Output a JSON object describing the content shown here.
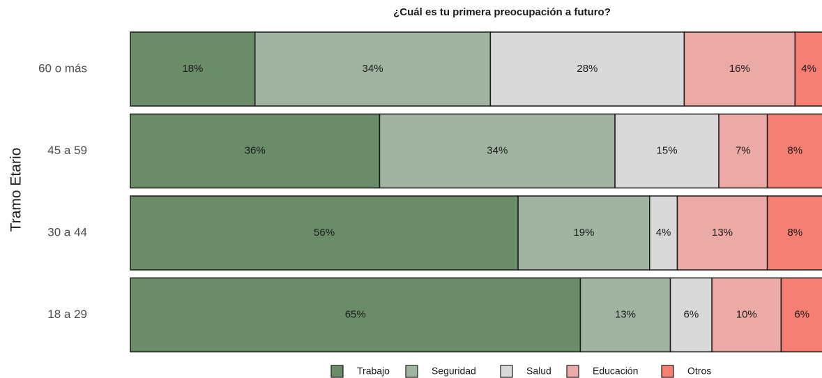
{
  "chart_data": {
    "type": "stacked_bar_horizontal",
    "title": "¿Cuál es tu primera preocupación a futuro?",
    "y_label": "Tramo Etario",
    "categories": [
      "60 o más",
      "45 a 59",
      "30 a 44",
      "18 a 29"
    ],
    "series": [
      {
        "name": "Trabajo",
        "color": "#6b8c69",
        "values": [
          18,
          36,
          56,
          65
        ],
        "value_labels": [
          "18%",
          "36%",
          "56%",
          "65%"
        ]
      },
      {
        "name": "Seguridad",
        "color": "#a1b4a1",
        "values": [
          34,
          34,
          19,
          13
        ],
        "value_labels": [
          "34%",
          "34%",
          "19%",
          "13%"
        ]
      },
      {
        "name": "Salud",
        "color": "#d9d9d9",
        "values": [
          28,
          15,
          4,
          6
        ],
        "value_labels": [
          "28%",
          "15%",
          "4%",
          "6%"
        ]
      },
      {
        "name": "Educación",
        "color": "#ebaaa5",
        "values": [
          16,
          7,
          13,
          10
        ],
        "value_labels": [
          "16%",
          "7%",
          "13%",
          "10%"
        ]
      },
      {
        "name": "Otros",
        "color": "#f57f72",
        "values": [
          4,
          8,
          8,
          6
        ],
        "value_labels": [
          "4%",
          "8%",
          "8%",
          "6%"
        ]
      }
    ],
    "legend": "bottom"
  }
}
